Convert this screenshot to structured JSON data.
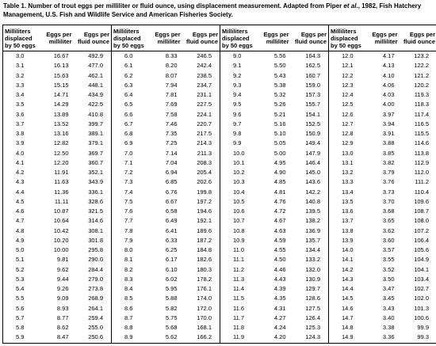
{
  "title": {
    "before": "Table 1.  Number of trout eggs per milliliter or fluid ounce, using displacement measurement.  Adapted from Piper ",
    "italic": "et al",
    "after": "., 1982,  Fish Hatchery Management,  U.S. Fish and Wildlife Service and American Fisheries Society."
  },
  "table": {
    "headers": [
      "Milliliters displaced by 50 eggs",
      "Eggs per milliliter",
      "Eggs per fluid ounce",
      "Milliliters displaced by 50 eggs",
      "Eggs per milliliter",
      "Eggs per fluid ounce",
      "Milliliters displaced by 50 eggs",
      "Eggs per milliliter",
      "Eggs per fluid ounce",
      "Milliliters displaced by 50 eggs",
      "Eggs per milliliter",
      "Eggs per fluid ounce"
    ],
    "rows": [
      [
        "3.0",
        "16.67",
        "492.9",
        "6.0",
        "8.33",
        "246.5",
        "9.0",
        "5.56",
        "164.3",
        "12.0",
        "4.17",
        "123.2"
      ],
      [
        "3.1",
        "16.13",
        "477.0",
        "6.1",
        "8.20",
        "242.4",
        "9.1",
        "5.50",
        "162.5",
        "12.1",
        "4.13",
        "122.2"
      ],
      [
        "3.2",
        "15.63",
        "462.1",
        "6.2",
        "8.07",
        "238.5",
        "9.2",
        "5.43",
        "160.7",
        "12.2",
        "4.10",
        "121.2"
      ],
      [
        "3.3",
        "15.15",
        "448.1",
        "6.3",
        "7.94",
        "234.7",
        "9.3",
        "5.38",
        "159.0",
        "12.3",
        "4.06",
        "120.2"
      ],
      [
        "3.4",
        "14.71",
        "434.9",
        "6.4",
        "7.81",
        "231.1",
        "9.4",
        "5.32",
        "157.3",
        "12.4",
        "4.03",
        "119.3"
      ],
      [
        "3.5",
        "14.29",
        "422.5",
        "6.5",
        "7.69",
        "227.5",
        "9.5",
        "5.26",
        "155.7",
        "12.5",
        "4.00",
        "118.3"
      ],
      [
        "3.6",
        "13.89",
        "410.8",
        "6.6",
        "7.58",
        "224.1",
        "9.6",
        "5.21",
        "154.1",
        "12.6",
        "3.97",
        "117.4"
      ],
      [
        "3.7",
        "13.52",
        "399.7",
        "6.7",
        "7.46",
        "220.7",
        "9.7",
        "5.16",
        "152.5",
        "12.7",
        "3.94",
        "116.5"
      ],
      [
        "3.8",
        "13.16",
        "389.1",
        "6.8",
        "7.35",
        "217.5",
        "9.8",
        "5.10",
        "150.9",
        "12.8",
        "3.91",
        "115.5"
      ],
      [
        "3.9",
        "12.82",
        "379.1",
        "6.9",
        "7.25",
        "214.3",
        "9.9",
        "5.05",
        "149.4",
        "12.9",
        "3.88",
        "114.6"
      ],
      [
        "4.0",
        "12.50",
        "369.7",
        "7.0",
        "7.14",
        "211.3",
        "10.0",
        "5.00",
        "147.9",
        "13.0",
        "3.85",
        "113.8"
      ],
      [
        "4.1",
        "12.20",
        "360.7",
        "7.1",
        "7.04",
        "208.3",
        "10.1",
        "4.95",
        "146.4",
        "13.1",
        "3.82",
        "112.9"
      ],
      [
        "4.2",
        "11.91",
        "352.1",
        "7.2",
        "6.94",
        "205.4",
        "10.2",
        "4.90",
        "145.0",
        "13.2",
        "3.79",
        "112.0"
      ],
      [
        "4.3",
        "11.63",
        "343.9",
        "7.3",
        "6.85",
        "202.6",
        "10.3",
        "4.85",
        "143.6",
        "13.3",
        "3.76",
        "111.2"
      ],
      [
        "4.4",
        "11.36",
        "336.1",
        "7.4",
        "6.76",
        "199.8",
        "10.4",
        "4.81",
        "142.2",
        "13.4",
        "3.73",
        "110.4"
      ],
      [
        "4.5",
        "11.11",
        "328.6",
        "7.5",
        "6.67",
        "197.2",
        "10.5",
        "4.76",
        "140.8",
        "13.5",
        "3.70",
        "109.6"
      ],
      [
        "4.6",
        "10.87",
        "321.5",
        "7.6",
        "6.58",
        "194.6",
        "10.6",
        "4.72",
        "139.5",
        "13.6",
        "3.68",
        "108.7"
      ],
      [
        "4.7",
        "10.64",
        "314.6",
        "7.7",
        "6.49",
        "192.1",
        "10.7",
        "4.67",
        "138.2",
        "13.7",
        "3.65",
        "108.0"
      ],
      [
        "4.8",
        "10.42",
        "308.1",
        "7.8",
        "6.41",
        "189.6",
        "10.8",
        "4.63",
        "136.9",
        "13.8",
        "3.62",
        "107.2"
      ],
      [
        "4.9",
        "10.20",
        "301.8",
        "7.9",
        "6.33",
        "187.2",
        "10.9",
        "4.59",
        "135.7",
        "13.9",
        "3.60",
        "106.4"
      ],
      [
        "5.0",
        "10.00",
        "295.8",
        "8.0",
        "6.25",
        "184.8",
        "11.0",
        "4.55",
        "134.4",
        "14.0",
        "3.57",
        "105.6"
      ],
      [
        "5.1",
        "9.81",
        "290.0",
        "8.1",
        "6.17",
        "182.6",
        "11.1",
        "4.50",
        "133.2",
        "14.1",
        "3.55",
        "104.9"
      ],
      [
        "5.2",
        "9.62",
        "284.4",
        "8.2",
        "6.10",
        "180.3",
        "11.2",
        "4.46",
        "132.0",
        "14.2",
        "3.52",
        "104.1"
      ],
      [
        "5.3",
        "9.44",
        "279.0",
        "8.3",
        "6.02",
        "178.2",
        "11.3",
        "4.43",
        "130.9",
        "14.3",
        "3.50",
        "103.4"
      ],
      [
        "5.4",
        "9.26",
        "273.8",
        "8.4",
        "5.95",
        "176.1",
        "11.4",
        "4.39",
        "129.7",
        "14.4",
        "3.47",
        "102.7"
      ],
      [
        "5.5",
        "9.09",
        "268.9",
        "8.5",
        "5.88",
        "174.0",
        "11.5",
        "4.35",
        "128.6",
        "14.5",
        "3.45",
        "102.0"
      ],
      [
        "5.6",
        "8.93",
        "264.1",
        "8.6",
        "5.82",
        "172.0",
        "11.6",
        "4.31",
        "127.5",
        "14.6",
        "3.43",
        "101.3"
      ],
      [
        "5.7",
        "8.77",
        "259.4",
        "8.7",
        "5.75",
        "170.0",
        "11.7",
        "4.27",
        "126.4",
        "14.7",
        "3.40",
        "100.6"
      ],
      [
        "5.8",
        "8.62",
        "255.0",
        "8.8",
        "5.68",
        "168.1",
        "11.8",
        "4.24",
        "125.3",
        "14.8",
        "3.38",
        "99.9"
      ],
      [
        "5.9",
        "8.47",
        "250.6",
        "8.9",
        "5.62",
        "166.2",
        "11.9",
        "4.20",
        "124.3",
        "14.9",
        "3.36",
        "99.3"
      ]
    ]
  }
}
